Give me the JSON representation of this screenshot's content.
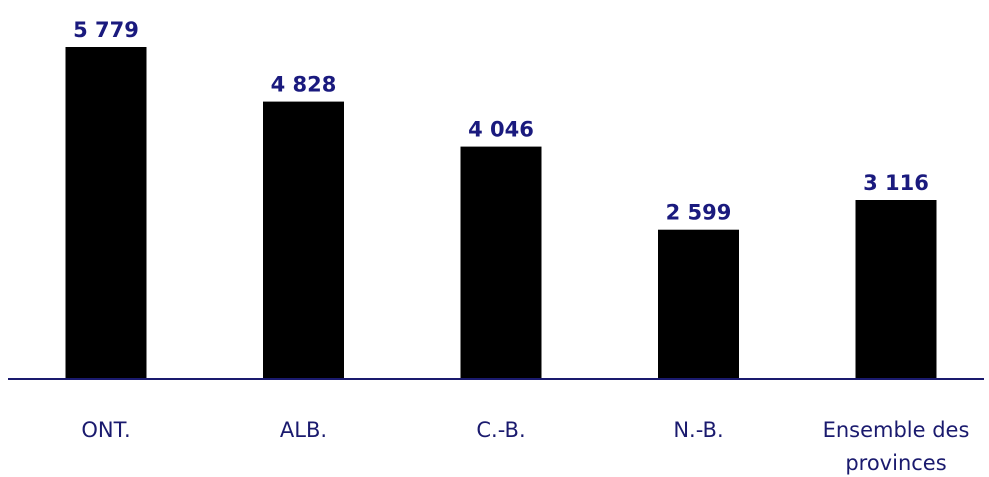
{
  "chart_data": {
    "type": "bar",
    "categories": [
      [
        "ONT."
      ],
      [
        "ALB."
      ],
      [
        "C.-B."
      ],
      [
        "N.-B."
      ],
      [
        "Ensemble des",
        "provinces"
      ]
    ],
    "values": [
      5779,
      4828,
      4046,
      2599,
      3116
    ],
    "value_labels": [
      "5 779",
      "4 828",
      "4 046",
      "2 599",
      "3 116"
    ],
    "title": "",
    "xlabel": "",
    "ylabel": "",
    "ylim": [
      0,
      5779
    ],
    "grid": false,
    "legend": "none"
  },
  "colors": {
    "bar": "#000000",
    "value_label": "#1a1a7e",
    "axis": "#1a1a6e",
    "category_label": "#1a1a6e"
  }
}
